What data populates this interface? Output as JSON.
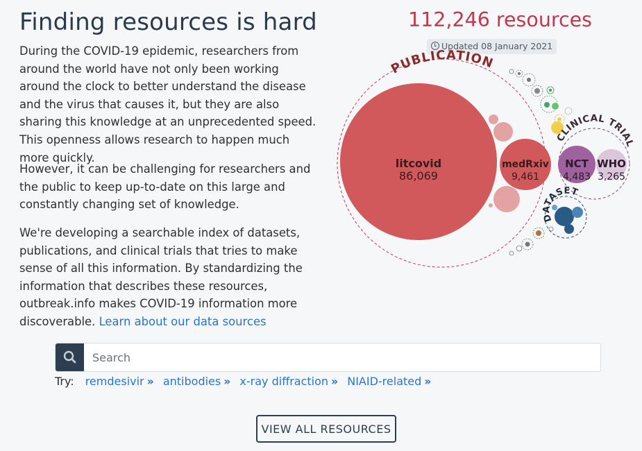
{
  "intro": {
    "title": "Finding resources is hard",
    "paragraph1": "During the COVID-19 epidemic, researchers from around the world have not only been working around the clock to better understand the disease and the virus that causes it, but they are also sharing this knowledge at an unprecedented speed. This openness allows research to happen much more quickly.",
    "paragraph2": "However, it can be challenging for researchers and the public to keep up-to-date on this large and constantly changing set of knowledge.",
    "paragraph3": "We're developing a searchable index of datasets, publications, and clinical trials that tries to make sense of all this information. By standardizing the information that describes these resources, outbreak.info makes COVID-19 information more discoverable.",
    "learn_more_link": "Learn about our data sources"
  },
  "summary": {
    "resource_count": "112,246 resources",
    "updated": "Updated 08 January 2021"
  },
  "bubble_chart": {
    "groups": [
      {
        "label": "PUBLICATION",
        "color": "#c0394f"
      },
      {
        "label": "CLINICAL TRIAL",
        "color": "#7b4b7f"
      },
      {
        "label": "DATASET",
        "color": "#2b4a6e"
      }
    ],
    "sources": [
      {
        "name": "litcovid",
        "count": "86,069"
      },
      {
        "name": "medRxiv",
        "count": "9,461"
      },
      {
        "name": "NCT",
        "count": "4,483"
      },
      {
        "name": "WHO",
        "count": "3,265"
      }
    ],
    "colors": {
      "publication": "#d1595b",
      "publication_light": "#e3a3a3",
      "clinical_trial": "#a0619f",
      "clinical_trial_light": "#dcc6dc",
      "dataset": "#2a5a86"
    }
  },
  "search": {
    "placeholder": "Search",
    "try_label": "Try:",
    "suggestions": [
      "remdesivir",
      "antibodies",
      "x-ray diffraction",
      "NIAID-related"
    ]
  },
  "view_all_button": "VIEW ALL RESOURCES"
}
